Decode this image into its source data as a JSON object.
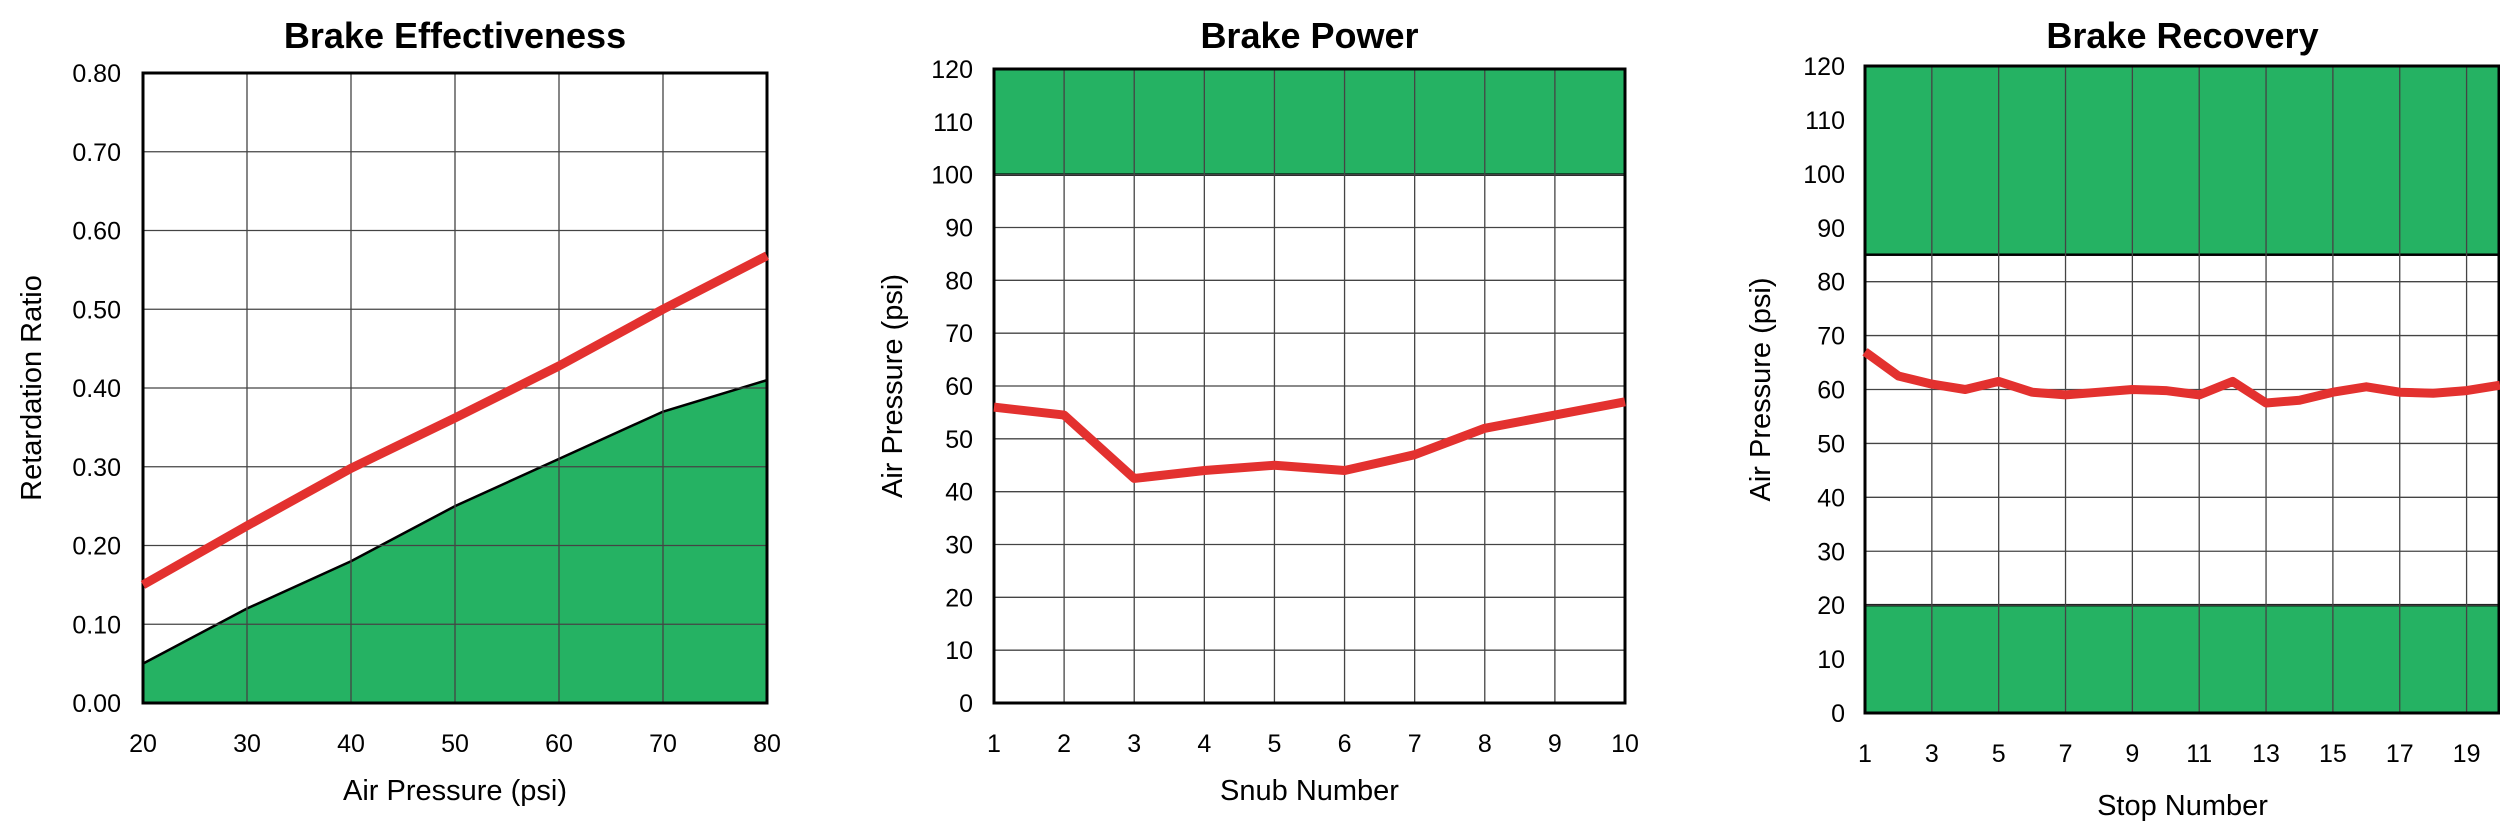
{
  "colors": {
    "line": "#e3312f",
    "band": "#25b263",
    "grid": "#444444",
    "frame": "#000000"
  },
  "chart_data": [
    {
      "type": "line",
      "title": "Brake Effectiveness",
      "xlabel": "Air Pressure (psi)",
      "ylabel": "Retardation Ratio",
      "xlim": [
        20,
        80
      ],
      "ylim": [
        0,
        0.8
      ],
      "xticks": [
        20,
        30,
        40,
        50,
        60,
        70,
        80
      ],
      "xtick_labels": [
        "20",
        "30",
        "40",
        "50",
        "60",
        "70",
        "80"
      ],
      "yticks": [
        0,
        0.1,
        0.2,
        0.3,
        0.4,
        0.5,
        0.6,
        0.7,
        0.8
      ],
      "ytick_labels": [
        "0.00",
        "0.10",
        "0.20",
        "0.30",
        "0.40",
        "0.50",
        "0.60",
        "0.70",
        "0.80"
      ],
      "xgrid": [
        20,
        30,
        40,
        50,
        60,
        70,
        80
      ],
      "ygrid": [
        0,
        0.1,
        0.2,
        0.3,
        0.4,
        0.5,
        0.6,
        0.7,
        0.8
      ],
      "grid": true,
      "series": [
        {
          "x": [
            20,
            30,
            40,
            50,
            60,
            70,
            80
          ],
          "y": [
            0.15,
            0.225,
            0.298,
            0.362,
            0.428,
            0.5,
            0.568
          ]
        }
      ],
      "shaded_area": {
        "x": [
          20,
          30,
          40,
          50,
          60,
          70,
          80
        ],
        "y": [
          0.05,
          0.12,
          0.18,
          0.25,
          0.31,
          0.37,
          0.41
        ]
      }
    },
    {
      "type": "line",
      "title": "Brake Power",
      "xlabel": "Snub Number",
      "ylabel": "Air Pressure (psi)",
      "xlim": [
        1,
        10
      ],
      "ylim": [
        0,
        120
      ],
      "xticks": [
        1,
        2,
        3,
        4,
        5,
        6,
        7,
        8,
        9,
        10
      ],
      "xtick_labels": [
        "1",
        "2",
        "3",
        "4",
        "5",
        "6",
        "7",
        "8",
        "9",
        "10"
      ],
      "yticks": [
        0,
        10,
        20,
        30,
        40,
        50,
        60,
        70,
        80,
        90,
        100,
        110,
        120
      ],
      "ytick_labels": [
        "0",
        "10",
        "20",
        "30",
        "40",
        "50",
        "60",
        "70",
        "80",
        "90",
        "100",
        "110",
        "120"
      ],
      "xgrid": [
        1,
        2,
        3,
        4,
        5,
        6,
        7,
        8,
        9,
        10
      ],
      "ygrid": [
        0,
        10,
        20,
        30,
        40,
        50,
        60,
        70,
        80,
        90,
        100
      ],
      "grid": true,
      "series": [
        {
          "x": [
            1,
            2,
            3,
            4,
            5,
            6,
            7,
            8,
            9,
            10
          ],
          "y": [
            56,
            54.5,
            42.5,
            44,
            45,
            44,
            47,
            52,
            54.5,
            57
          ]
        }
      ],
      "bands": [
        {
          "from": 100,
          "to": 120
        }
      ]
    },
    {
      "type": "line",
      "title": "Brake Recovery",
      "xlabel": "Stop Number",
      "ylabel": "Air Pressure (psi)",
      "xlim": [
        1,
        20
      ],
      "ylim": [
        0,
        120
      ],
      "xticks": [
        1,
        3,
        5,
        7,
        9,
        11,
        13,
        15,
        17,
        19
      ],
      "xtick_labels": [
        "1",
        "3",
        "5",
        "7",
        "9",
        "11",
        "13",
        "15",
        "17",
        "19"
      ],
      "yticks": [
        0,
        10,
        20,
        30,
        40,
        50,
        60,
        70,
        80,
        90,
        100,
        110,
        120
      ],
      "ytick_labels": [
        "0",
        "10",
        "20",
        "30",
        "40",
        "50",
        "60",
        "70",
        "80",
        "90",
        "100",
        "110",
        "120"
      ],
      "xgrid": [
        1,
        3,
        5,
        7,
        9,
        11,
        13,
        15,
        17,
        19
      ],
      "ygrid": [
        20,
        30,
        40,
        50,
        60,
        70,
        80
      ],
      "grid": true,
      "series": [
        {
          "x": [
            1,
            2,
            3,
            4,
            5,
            6,
            7,
            8,
            9,
            10,
            11,
            12,
            13,
            14,
            15,
            16,
            17,
            18,
            19,
            20
          ],
          "y": [
            67,
            62.5,
            61,
            60,
            61.5,
            59.5,
            59,
            59.5,
            60,
            59.8,
            59,
            61.5,
            57.5,
            58,
            59.5,
            60.5,
            59.5,
            59.3,
            59.8,
            60.8
          ]
        }
      ],
      "bands": [
        {
          "from": 85,
          "to": 120
        },
        {
          "from": 0,
          "to": 20
        }
      ]
    }
  ]
}
